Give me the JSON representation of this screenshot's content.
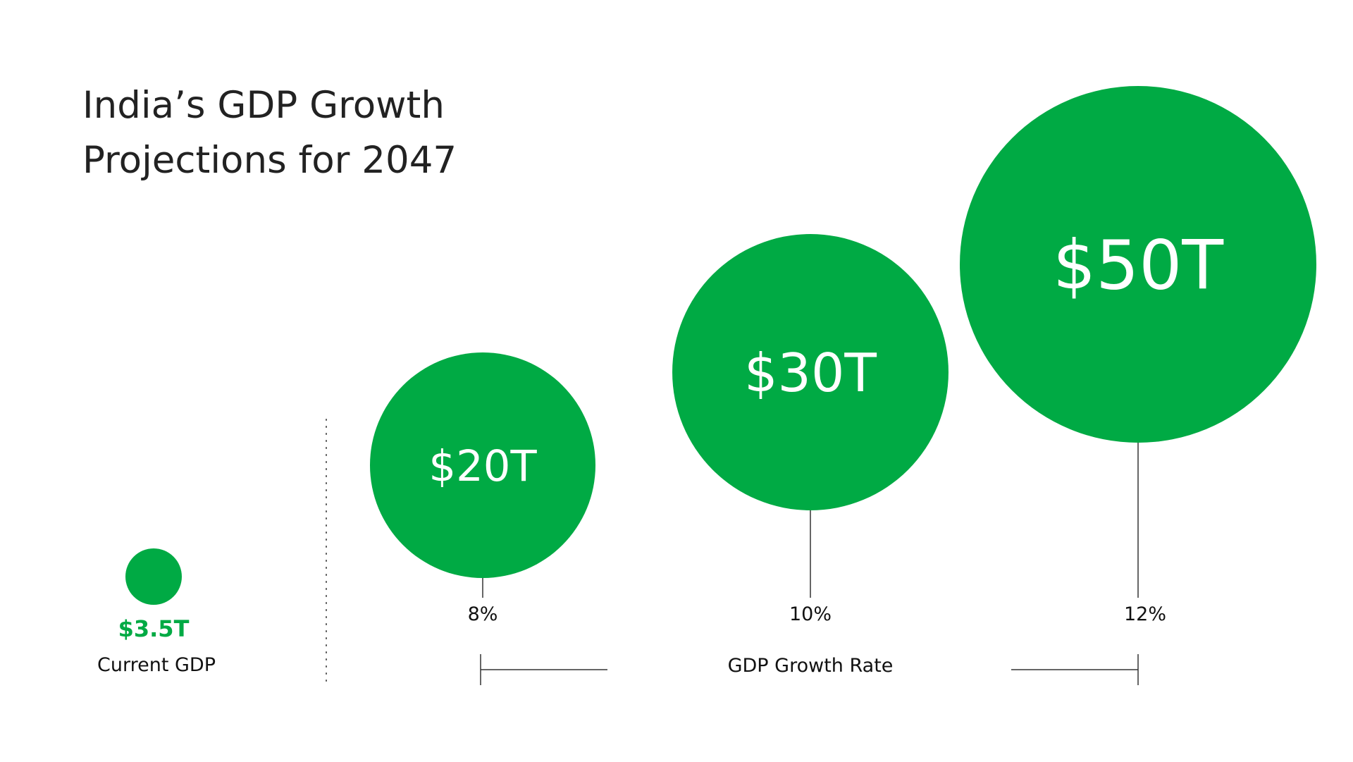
{
  "chart_data": {
    "type": "bubble",
    "title_lines": [
      "India’s GDP Growth",
      "Projections for 2047"
    ],
    "current": {
      "value": 3.5,
      "label": "$3.5T",
      "caption": "Current GDP"
    },
    "projections": [
      {
        "growth_rate": 8,
        "rate_label": "8%",
        "gdp": 20,
        "label": "$20T"
      },
      {
        "growth_rate": 10,
        "rate_label": "10%",
        "gdp": 30,
        "label": "$30T"
      },
      {
        "growth_rate": 12,
        "rate_label": "12%",
        "gdp": 50,
        "label": "$50T"
      }
    ],
    "unit": "trillion USD",
    "xlabel": "GDP Growth Rate"
  },
  "colors": {
    "accent": "#00aa44",
    "text": "#222222",
    "line": "#333333",
    "background": "#ffffff"
  }
}
